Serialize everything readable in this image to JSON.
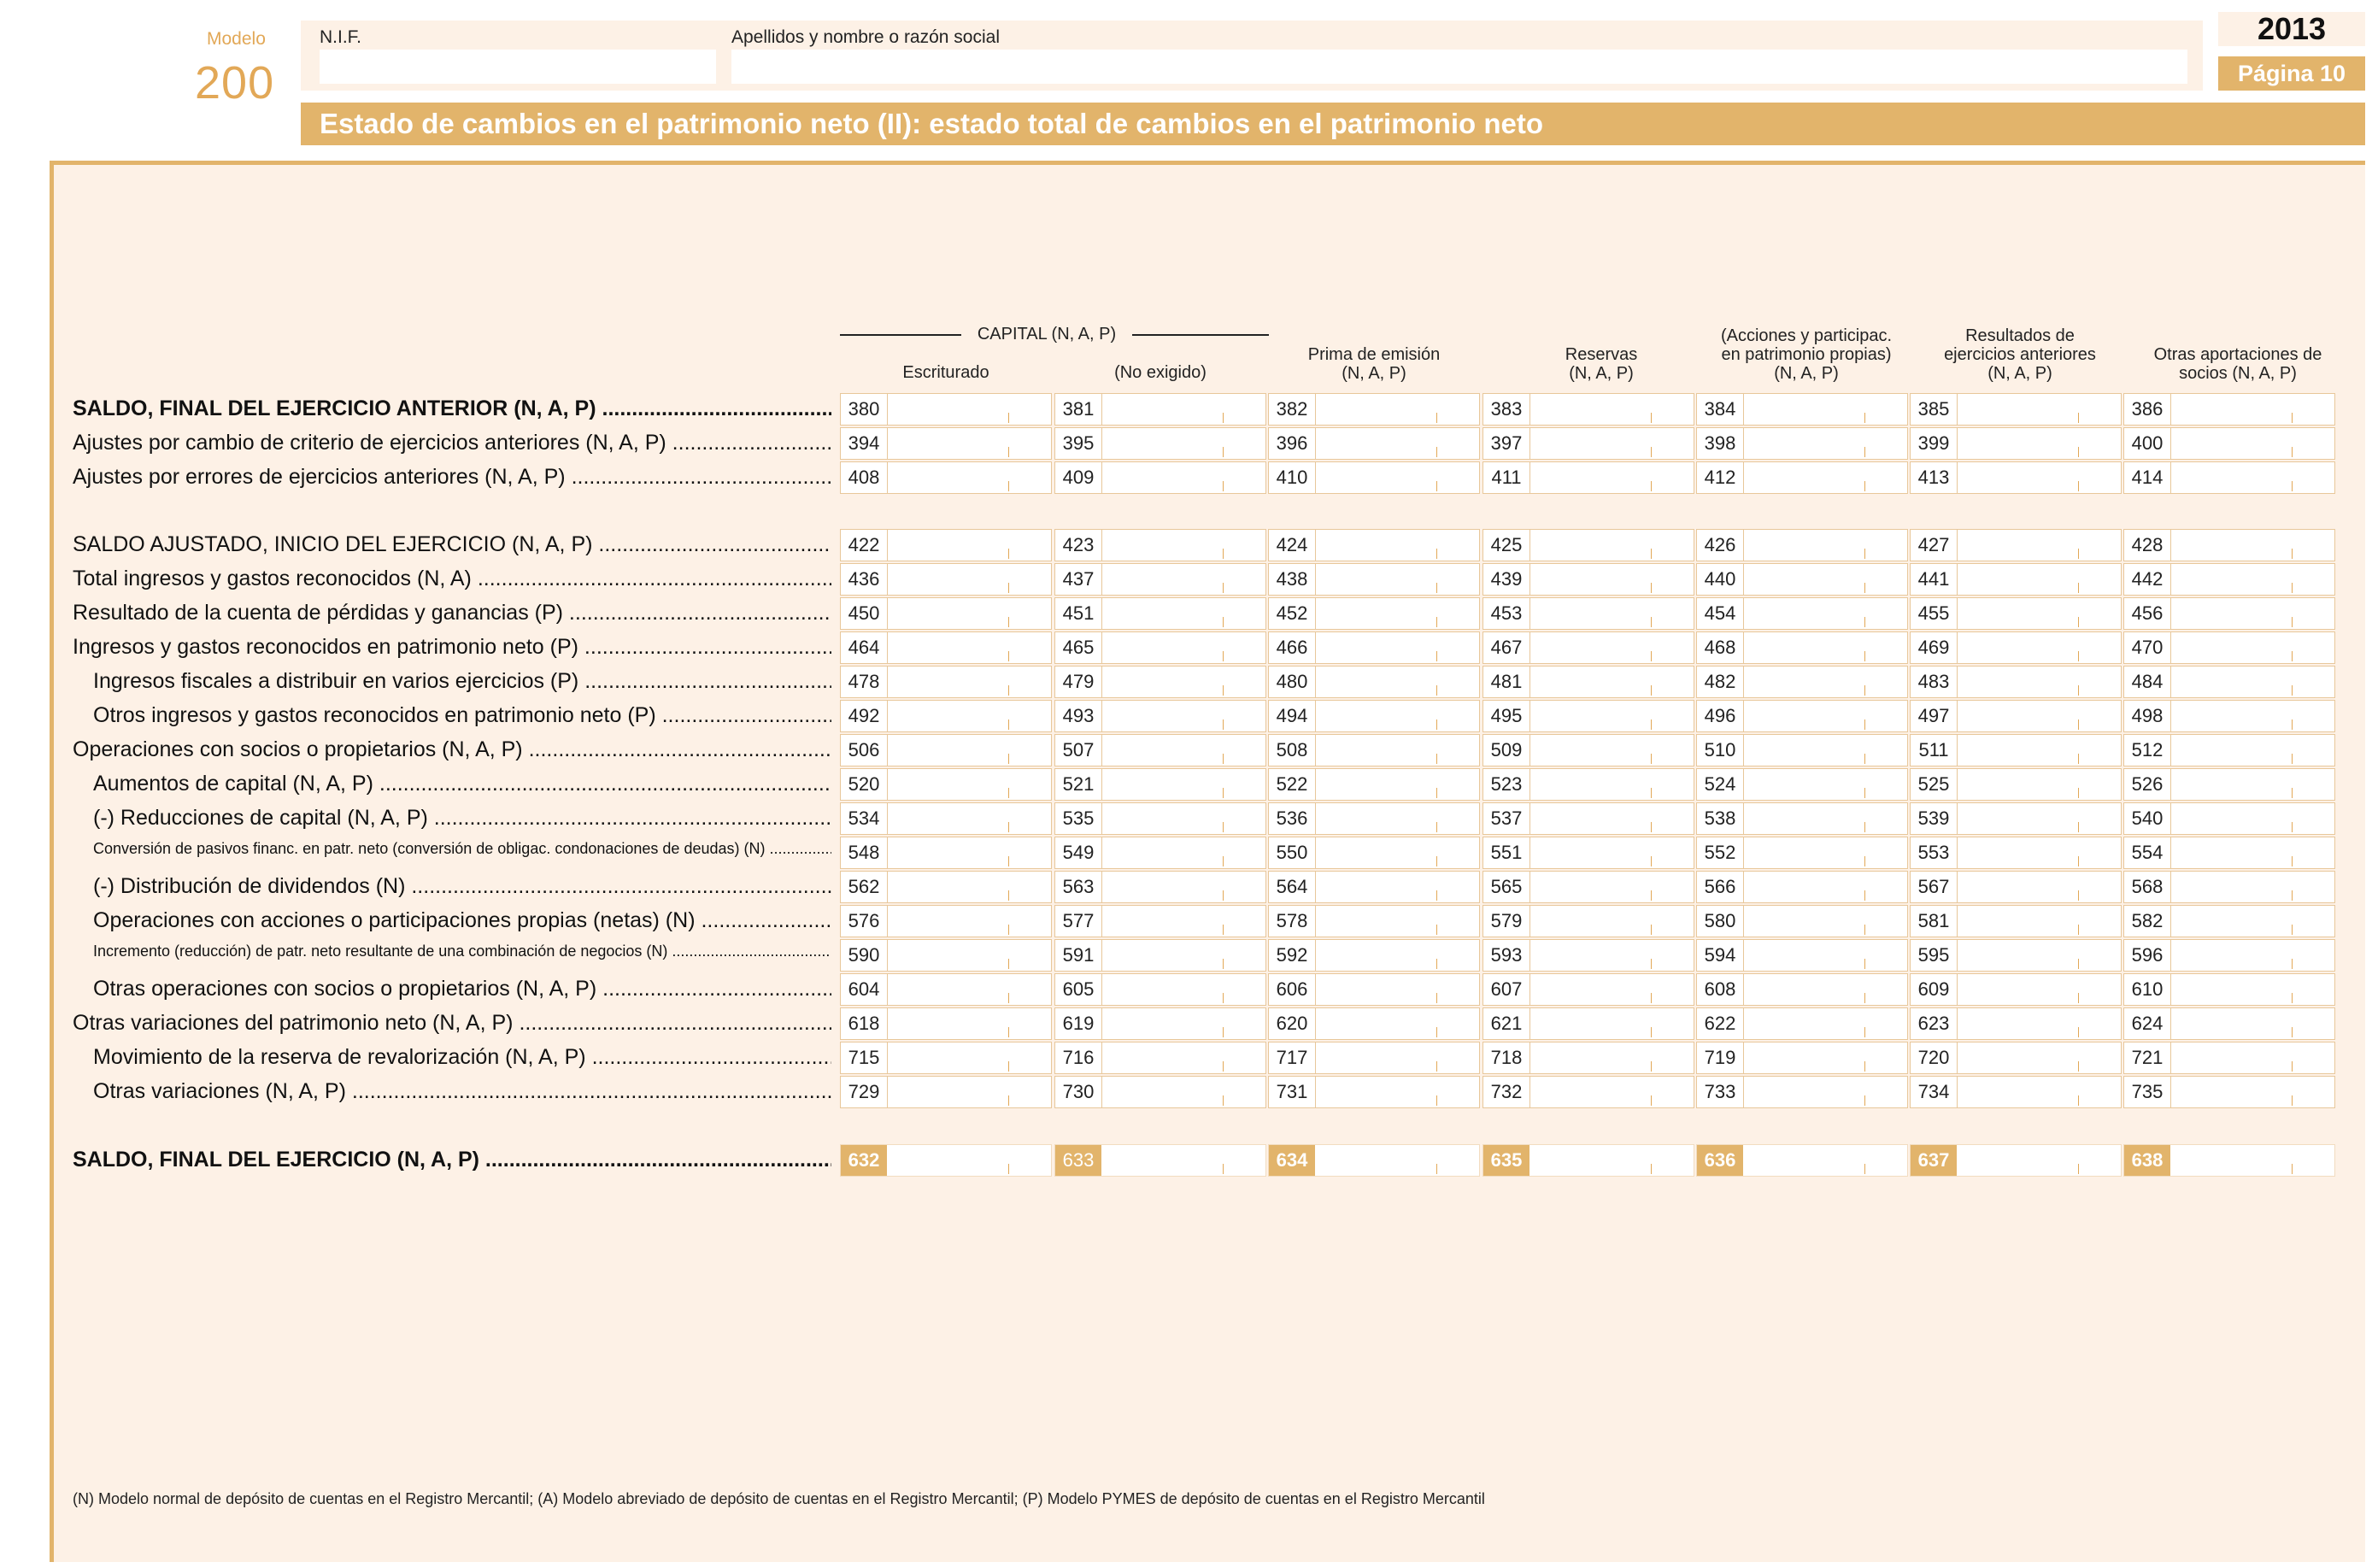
{
  "header": {
    "modelo_label": "Modelo",
    "modelo_number": "200",
    "nif_label": "N.I.F.",
    "name_label": "Apellidos y nombre o razón social",
    "nif_value": "",
    "name_value": "",
    "year": "2013",
    "page": "Página 10",
    "title": "Estado de cambios en el patrimonio neto (II): estado total de cambios en el patrimonio neto"
  },
  "columns": {
    "capital_group": "CAPITAL (N, A, P)",
    "col1": "Escriturado",
    "col2": "(No exigido)",
    "col3_line1": "Prima de emisión",
    "col3_line2": "(N, A, P)",
    "col4_line1": "Reservas",
    "col4_line2": "(N, A, P)",
    "col5_line1": "(Acciones y participac.",
    "col5_line2": "en patrimonio propias)",
    "col5_line3": "(N, A, P)",
    "col6_line1": "Resultados de",
    "col6_line2": "ejercicios anteriores",
    "col6_line3": "(N, A, P)",
    "col7_line1": "Otras aportaciones de",
    "col7_line2": "socios (N, A, P)"
  },
  "rows": [
    {
      "label": "SALDO, FINAL DEL EJERCICIO ANTERIOR (N, A, P)",
      "style": "bold",
      "codes": [
        "380",
        "381",
        "382",
        "383",
        "384",
        "385",
        "386"
      ]
    },
    {
      "label": "Ajustes por cambio de criterio de ejercicios anteriores (N, A, P)",
      "style": "",
      "codes": [
        "394",
        "395",
        "396",
        "397",
        "398",
        "399",
        "400"
      ]
    },
    {
      "label": "Ajustes por errores de ejercicios anteriores (N, A, P)",
      "style": "",
      "codes": [
        "408",
        "409",
        "410",
        "411",
        "412",
        "413",
        "414"
      ]
    },
    {
      "label": "SALDO AJUSTADO, INICIO DEL EJERCICIO (N, A, P)",
      "style": "",
      "codes": [
        "422",
        "423",
        "424",
        "425",
        "426",
        "427",
        "428"
      ]
    },
    {
      "label": "Total ingresos y gastos reconocidos (N, A)",
      "style": "",
      "codes": [
        "436",
        "437",
        "438",
        "439",
        "440",
        "441",
        "442"
      ]
    },
    {
      "label": "Resultado de la cuenta de pérdidas y ganancias (P)",
      "style": "",
      "codes": [
        "450",
        "451",
        "452",
        "453",
        "454",
        "455",
        "456"
      ]
    },
    {
      "label": "Ingresos y gastos reconocidos en patrimonio neto (P)",
      "style": "",
      "codes": [
        "464",
        "465",
        "466",
        "467",
        "468",
        "469",
        "470"
      ]
    },
    {
      "label": "Ingresos fiscales a distribuir en varios ejercicios (P)",
      "style": "indent",
      "codes": [
        "478",
        "479",
        "480",
        "481",
        "482",
        "483",
        "484"
      ]
    },
    {
      "label": "Otros ingresos y gastos reconocidos en patrimonio neto (P)",
      "style": "indent",
      "codes": [
        "492",
        "493",
        "494",
        "495",
        "496",
        "497",
        "498"
      ]
    },
    {
      "label": "Operaciones con socios o propietarios (N, A, P)",
      "style": "",
      "codes": [
        "506",
        "507",
        "508",
        "509",
        "510",
        "511",
        "512"
      ]
    },
    {
      "label": "Aumentos de capital (N, A, P)",
      "style": "indent",
      "codes": [
        "520",
        "521",
        "522",
        "523",
        "524",
        "525",
        "526"
      ]
    },
    {
      "label": "(-) Reducciones de capital (N, A, P)",
      "style": "indent",
      "codes": [
        "534",
        "535",
        "536",
        "537",
        "538",
        "539",
        "540"
      ]
    },
    {
      "label": "Conversión de pasivos financ. en patr. neto (conversión de obligac. condonaciones de deudas) (N)",
      "style": "indent small",
      "codes": [
        "548",
        "549",
        "550",
        "551",
        "552",
        "553",
        "554"
      ]
    },
    {
      "label": "(-) Distribución de dividendos (N)",
      "style": "indent",
      "codes": [
        "562",
        "563",
        "564",
        "565",
        "566",
        "567",
        "568"
      ]
    },
    {
      "label": "Operaciones con acciones o participaciones propias (netas) (N)",
      "style": "indent",
      "codes": [
        "576",
        "577",
        "578",
        "579",
        "580",
        "581",
        "582"
      ]
    },
    {
      "label": "Incremento (reducción) de patr. neto resultante de una combinación de negocios (N)",
      "style": "indent small",
      "codes": [
        "590",
        "591",
        "592",
        "593",
        "594",
        "595",
        "596"
      ]
    },
    {
      "label": "Otras operaciones con socios o propietarios (N, A, P)",
      "style": "indent",
      "codes": [
        "604",
        "605",
        "606",
        "607",
        "608",
        "609",
        "610"
      ]
    },
    {
      "label": "Otras variaciones del patrimonio neto (N, A, P)",
      "style": "",
      "codes": [
        "618",
        "619",
        "620",
        "621",
        "622",
        "623",
        "624"
      ]
    },
    {
      "label": "Movimiento de la reserva de revalorización (N, A, P)",
      "style": "indent",
      "codes": [
        "715",
        "716",
        "717",
        "718",
        "719",
        "720",
        "721"
      ]
    },
    {
      "label": "Otras variaciones (N, A, P)",
      "style": "indent",
      "codes": [
        "729",
        "730",
        "731",
        "732",
        "733",
        "734",
        "735"
      ]
    },
    {
      "label": "SALDO, FINAL DEL EJERCICIO (N, A, P)",
      "style": "bold total",
      "codes": [
        "632",
        "633",
        "634",
        "635",
        "636",
        "637",
        "638"
      ]
    }
  ],
  "footnote": "(N)   Modelo normal de depósito de cuentas en el Registro Mercantil; (A) Modelo abreviado de depósito de cuentas en el Registro Mercantil; (P) Modelo PYMES de depósito de cuentas en el Registro Mercantil"
}
